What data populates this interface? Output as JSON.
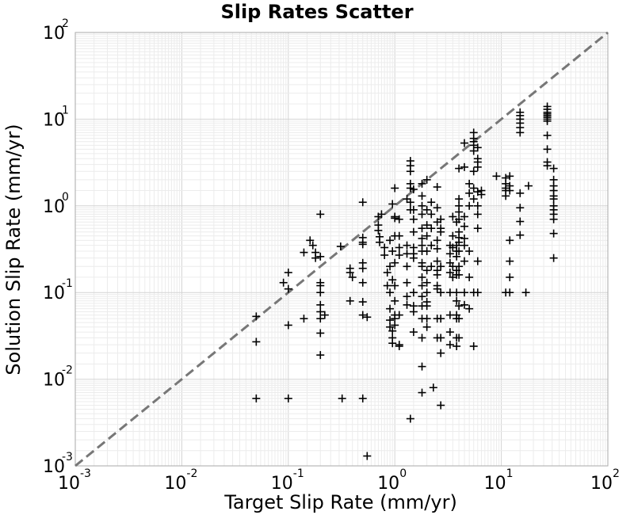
{
  "chart_data": {
    "type": "scatter",
    "title": "Slip Rates Scatter",
    "xlabel": "Target Slip Rate (mm/yr)",
    "ylabel": "Solution Slip Rate (mm/yr)",
    "xscale": "log",
    "yscale": "log",
    "xlim": [
      0.001,
      100
    ],
    "ylim": [
      0.001,
      100
    ],
    "grid": true,
    "marker": "+",
    "marker_color": "#000000",
    "reference_line": {
      "type": "y=x",
      "style": "dashed",
      "color": "#777777"
    },
    "x_ticks": [
      {
        "base": "10",
        "exp": "-3"
      },
      {
        "base": "10",
        "exp": "-2"
      },
      {
        "base": "10",
        "exp": "-1"
      },
      {
        "base": "10",
        "exp": "0"
      },
      {
        "base": "10",
        "exp": "1"
      },
      {
        "base": "10",
        "exp": "2"
      }
    ],
    "y_ticks": [
      {
        "base": "10",
        "exp": "-3"
      },
      {
        "base": "10",
        "exp": "-2"
      },
      {
        "base": "10",
        "exp": "-1"
      },
      {
        "base": "10",
        "exp": "0"
      },
      {
        "base": "10",
        "exp": "1"
      },
      {
        "base": "10",
        "exp": "2"
      }
    ],
    "points": [
      [
        0.05,
        0.053
      ],
      [
        0.05,
        0.027
      ],
      [
        0.05,
        0.006
      ],
      [
        0.09,
        0.13
      ],
      [
        0.1,
        0.11
      ],
      [
        0.1,
        0.17
      ],
      [
        0.1,
        0.042
      ],
      [
        0.1,
        0.006
      ],
      [
        0.14,
        0.29
      ],
      [
        0.14,
        0.05
      ],
      [
        0.16,
        0.4
      ],
      [
        0.17,
        0.35
      ],
      [
        0.18,
        0.29
      ],
      [
        0.18,
        0.25
      ],
      [
        0.2,
        0.8
      ],
      [
        0.2,
        0.26
      ],
      [
        0.2,
        0.13
      ],
      [
        0.2,
        0.12
      ],
      [
        0.2,
        0.1
      ],
      [
        0.2,
        0.072
      ],
      [
        0.2,
        0.06
      ],
      [
        0.2,
        0.05
      ],
      [
        0.2,
        0.034
      ],
      [
        0.2,
        0.019
      ],
      [
        0.22,
        0.055
      ],
      [
        0.31,
        0.34
      ],
      [
        0.32,
        0.006
      ],
      [
        0.38,
        0.19
      ],
      [
        0.38,
        0.17
      ],
      [
        0.38,
        0.08
      ],
      [
        0.4,
        0.15
      ],
      [
        0.5,
        1.1
      ],
      [
        0.5,
        0.43
      ],
      [
        0.5,
        0.38
      ],
      [
        0.5,
        0.36
      ],
      [
        0.5,
        0.22
      ],
      [
        0.5,
        0.19
      ],
      [
        0.5,
        0.13
      ],
      [
        0.5,
        0.078
      ],
      [
        0.5,
        0.055
      ],
      [
        0.5,
        0.006
      ],
      [
        0.55,
        0.052
      ],
      [
        0.55,
        0.0013
      ],
      [
        0.7,
        0.75
      ],
      [
        0.7,
        0.6
      ],
      [
        0.7,
        0.52
      ],
      [
        0.72,
        0.44
      ],
      [
        0.72,
        0.38
      ],
      [
        0.75,
        0.8
      ],
      [
        0.8,
        0.27
      ],
      [
        0.8,
        0.33
      ],
      [
        0.85,
        0.17
      ],
      [
        0.85,
        0.12
      ],
      [
        0.9,
        0.4
      ],
      [
        0.9,
        0.2
      ],
      [
        0.9,
        0.1
      ],
      [
        0.9,
        0.065
      ],
      [
        0.9,
        0.048
      ],
      [
        0.9,
        0.04
      ],
      [
        0.95,
        1.05
      ],
      [
        0.95,
        0.3
      ],
      [
        0.95,
        0.14
      ],
      [
        0.95,
        0.036
      ],
      [
        0.95,
        0.026
      ],
      [
        0.95,
        0.03
      ],
      [
        1.0,
        1.6
      ],
      [
        1.0,
        0.75
      ],
      [
        1.0,
        0.72
      ],
      [
        1.0,
        0.45
      ],
      [
        1.0,
        0.22
      ],
      [
        1.0,
        0.12
      ],
      [
        1.0,
        0.08
      ],
      [
        1.0,
        0.055
      ],
      [
        1.0,
        0.05
      ],
      [
        1.0,
        0.042
      ],
      [
        1.1,
        0.7
      ],
      [
        1.1,
        0.45
      ],
      [
        1.1,
        0.33
      ],
      [
        1.1,
        0.27
      ],
      [
        1.1,
        0.055
      ],
      [
        1.1,
        0.025
      ],
      [
        1.1,
        0.024
      ],
      [
        1.3,
        1.2
      ],
      [
        1.3,
        0.35
      ],
      [
        1.3,
        0.28
      ],
      [
        1.3,
        0.2
      ],
      [
        1.3,
        0.13
      ],
      [
        1.3,
        0.09
      ],
      [
        1.3,
        0.072
      ],
      [
        1.4,
        3.3
      ],
      [
        1.4,
        2.9
      ],
      [
        1.4,
        2.5
      ],
      [
        1.4,
        1.8
      ],
      [
        1.4,
        1.6
      ],
      [
        1.4,
        1.1
      ],
      [
        1.4,
        0.9
      ],
      [
        1.4,
        0.0035
      ],
      [
        1.5,
        1.55
      ],
      [
        1.5,
        0.9
      ],
      [
        1.5,
        0.7
      ],
      [
        1.5,
        0.5
      ],
      [
        1.5,
        0.33
      ],
      [
        1.5,
        0.28
      ],
      [
        1.5,
        0.25
      ],
      [
        1.5,
        0.1
      ],
      [
        1.5,
        0.07
      ],
      [
        1.5,
        0.06
      ],
      [
        1.5,
        0.035
      ],
      [
        1.8,
        1.8
      ],
      [
        1.8,
        1.3
      ],
      [
        1.8,
        1.0
      ],
      [
        1.8,
        0.8
      ],
      [
        1.8,
        0.55
      ],
      [
        1.8,
        0.42
      ],
      [
        1.8,
        0.35
      ],
      [
        1.8,
        0.3
      ],
      [
        1.8,
        0.22
      ],
      [
        1.8,
        0.2
      ],
      [
        1.8,
        0.15
      ],
      [
        1.8,
        0.12
      ],
      [
        1.8,
        0.09
      ],
      [
        1.8,
        0.07
      ],
      [
        1.8,
        0.05
      ],
      [
        1.8,
        0.03
      ],
      [
        1.8,
        0.014
      ],
      [
        1.8,
        0.007
      ],
      [
        2.0,
        2.0
      ],
      [
        2.0,
        0.9
      ],
      [
        2.0,
        0.6
      ],
      [
        2.0,
        0.45
      ],
      [
        2.0,
        0.3
      ],
      [
        2.0,
        0.18
      ],
      [
        2.0,
        0.13
      ],
      [
        2.0,
        0.1
      ],
      [
        2.0,
        0.078
      ],
      [
        2.0,
        0.07
      ],
      [
        2.0,
        0.05
      ],
      [
        2.0,
        0.04
      ],
      [
        2.2,
        1.1
      ],
      [
        2.2,
        0.8
      ],
      [
        2.2,
        0.55
      ],
      [
        2.2,
        0.35
      ],
      [
        2.2,
        0.2
      ],
      [
        2.3,
        0.008
      ],
      [
        2.5,
        1.65
      ],
      [
        2.5,
        0.95
      ],
      [
        2.5,
        0.65
      ],
      [
        2.5,
        0.4
      ],
      [
        2.5,
        0.32
      ],
      [
        2.5,
        0.23
      ],
      [
        2.5,
        0.18
      ],
      [
        2.5,
        0.16
      ],
      [
        2.5,
        0.12
      ],
      [
        2.5,
        0.11
      ],
      [
        2.5,
        0.05
      ],
      [
        2.5,
        0.03
      ],
      [
        2.7,
        0.7
      ],
      [
        2.7,
        0.55
      ],
      [
        2.7,
        0.5
      ],
      [
        2.7,
        0.2
      ],
      [
        2.7,
        0.1
      ],
      [
        2.7,
        0.05
      ],
      [
        2.7,
        0.03
      ],
      [
        2.7,
        0.02
      ],
      [
        2.7,
        0.005
      ],
      [
        3.3,
        0.35
      ],
      [
        3.3,
        0.28
      ],
      [
        3.3,
        0.22
      ],
      [
        3.3,
        0.17
      ],
      [
        3.3,
        0.1
      ],
      [
        3.3,
        0.055
      ],
      [
        3.3,
        0.035
      ],
      [
        3.3,
        0.025
      ],
      [
        3.5,
        0.75
      ],
      [
        3.5,
        0.45
      ],
      [
        3.5,
        0.33
      ],
      [
        3.5,
        0.2
      ],
      [
        3.5,
        0.15
      ],
      [
        3.8,
        0.65
      ],
      [
        3.8,
        0.35
      ],
      [
        3.8,
        0.3
      ],
      [
        3.8,
        0.26
      ],
      [
        3.8,
        0.18
      ],
      [
        3.8,
        0.16
      ],
      [
        3.8,
        0.1
      ],
      [
        3.8,
        0.08
      ],
      [
        3.8,
        0.055
      ],
      [
        3.8,
        0.05
      ],
      [
        3.8,
        0.03
      ],
      [
        3.8,
        0.024
      ],
      [
        4.0,
        2.7
      ],
      [
        4.0,
        1.2
      ],
      [
        4.0,
        1.0
      ],
      [
        4.0,
        0.85
      ],
      [
        4.0,
        0.7
      ],
      [
        4.0,
        0.5
      ],
      [
        4.0,
        0.43
      ],
      [
        4.0,
        0.38
      ],
      [
        4.0,
        0.3
      ],
      [
        4.0,
        0.2
      ],
      [
        4.0,
        0.16
      ],
      [
        4.0,
        0.07
      ],
      [
        4.0,
        0.05
      ],
      [
        4.0,
        0.03
      ],
      [
        4.5,
        5.3
      ],
      [
        4.5,
        2.8
      ],
      [
        4.5,
        0.75
      ],
      [
        4.5,
        0.58
      ],
      [
        4.5,
        0.42
      ],
      [
        4.5,
        0.35
      ],
      [
        4.5,
        0.23
      ],
      [
        4.5,
        0.1
      ],
      [
        4.5,
        0.072
      ],
      [
        5.0,
        1.8
      ],
      [
        5.0,
        1.4
      ],
      [
        5.0,
        1.0
      ],
      [
        5.0,
        0.3
      ],
      [
        5.0,
        0.15
      ],
      [
        5.0,
        0.065
      ],
      [
        5.5,
        7.0
      ],
      [
        5.5,
        6.0
      ],
      [
        5.5,
        5.5
      ],
      [
        5.5,
        5.0
      ],
      [
        5.5,
        4.3
      ],
      [
        5.5,
        2.5
      ],
      [
        5.5,
        1.6
      ],
      [
        5.5,
        1.2
      ],
      [
        5.5,
        0.1
      ],
      [
        5.5,
        0.024
      ],
      [
        6.0,
        4.7
      ],
      [
        6.0,
        3.5
      ],
      [
        6.0,
        3.2
      ],
      [
        6.0,
        2.8
      ],
      [
        6.0,
        1.45
      ],
      [
        6.0,
        1.0
      ],
      [
        6.0,
        0.8
      ],
      [
        6.0,
        0.55
      ],
      [
        6.0,
        0.23
      ],
      [
        6.0,
        0.1
      ],
      [
        6.5,
        1.5
      ],
      [
        6.5,
        1.35
      ],
      [
        9.0,
        2.2
      ],
      [
        11.0,
        2.1
      ],
      [
        11.0,
        1.8
      ],
      [
        11.0,
        1.6
      ],
      [
        11.0,
        1.5
      ],
      [
        11.0,
        1.3
      ],
      [
        11.0,
        0.1
      ],
      [
        12.0,
        2.2
      ],
      [
        12.0,
        1.7
      ],
      [
        12.0,
        1.5
      ],
      [
        12.0,
        0.4
      ],
      [
        12.0,
        0.23
      ],
      [
        12.0,
        0.15
      ],
      [
        12.0,
        0.1
      ],
      [
        15.0,
        12.0
      ],
      [
        15.0,
        11.0
      ],
      [
        15.0,
        10.0
      ],
      [
        15.0,
        9.0
      ],
      [
        15.0,
        8.0
      ],
      [
        15.0,
        7.0
      ],
      [
        15.0,
        1.4
      ],
      [
        15.0,
        0.95
      ],
      [
        15.0,
        0.66
      ],
      [
        15.0,
        0.46
      ],
      [
        17.0,
        0.1
      ],
      [
        18.0,
        1.7
      ],
      [
        27.0,
        14.0
      ],
      [
        27.0,
        13.0
      ],
      [
        27.0,
        12.0
      ],
      [
        27.0,
        11.5
      ],
      [
        27.0,
        11.0
      ],
      [
        27.0,
        10.5
      ],
      [
        27.0,
        10.0
      ],
      [
        27.0,
        9.5
      ],
      [
        27.0,
        6.5
      ],
      [
        27.0,
        4.5
      ],
      [
        27.0,
        3.2
      ],
      [
        27.0,
        2.9
      ],
      [
        31.0,
        2.7
      ],
      [
        31.0,
        2.0
      ],
      [
        31.0,
        1.7
      ],
      [
        31.0,
        1.5
      ],
      [
        31.0,
        1.3
      ],
      [
        31.0,
        1.2
      ],
      [
        31.0,
        1.0
      ],
      [
        31.0,
        0.9
      ],
      [
        31.0,
        0.8
      ],
      [
        31.0,
        0.7
      ],
      [
        31.0,
        0.48
      ],
      [
        31.0,
        0.25
      ]
    ]
  }
}
